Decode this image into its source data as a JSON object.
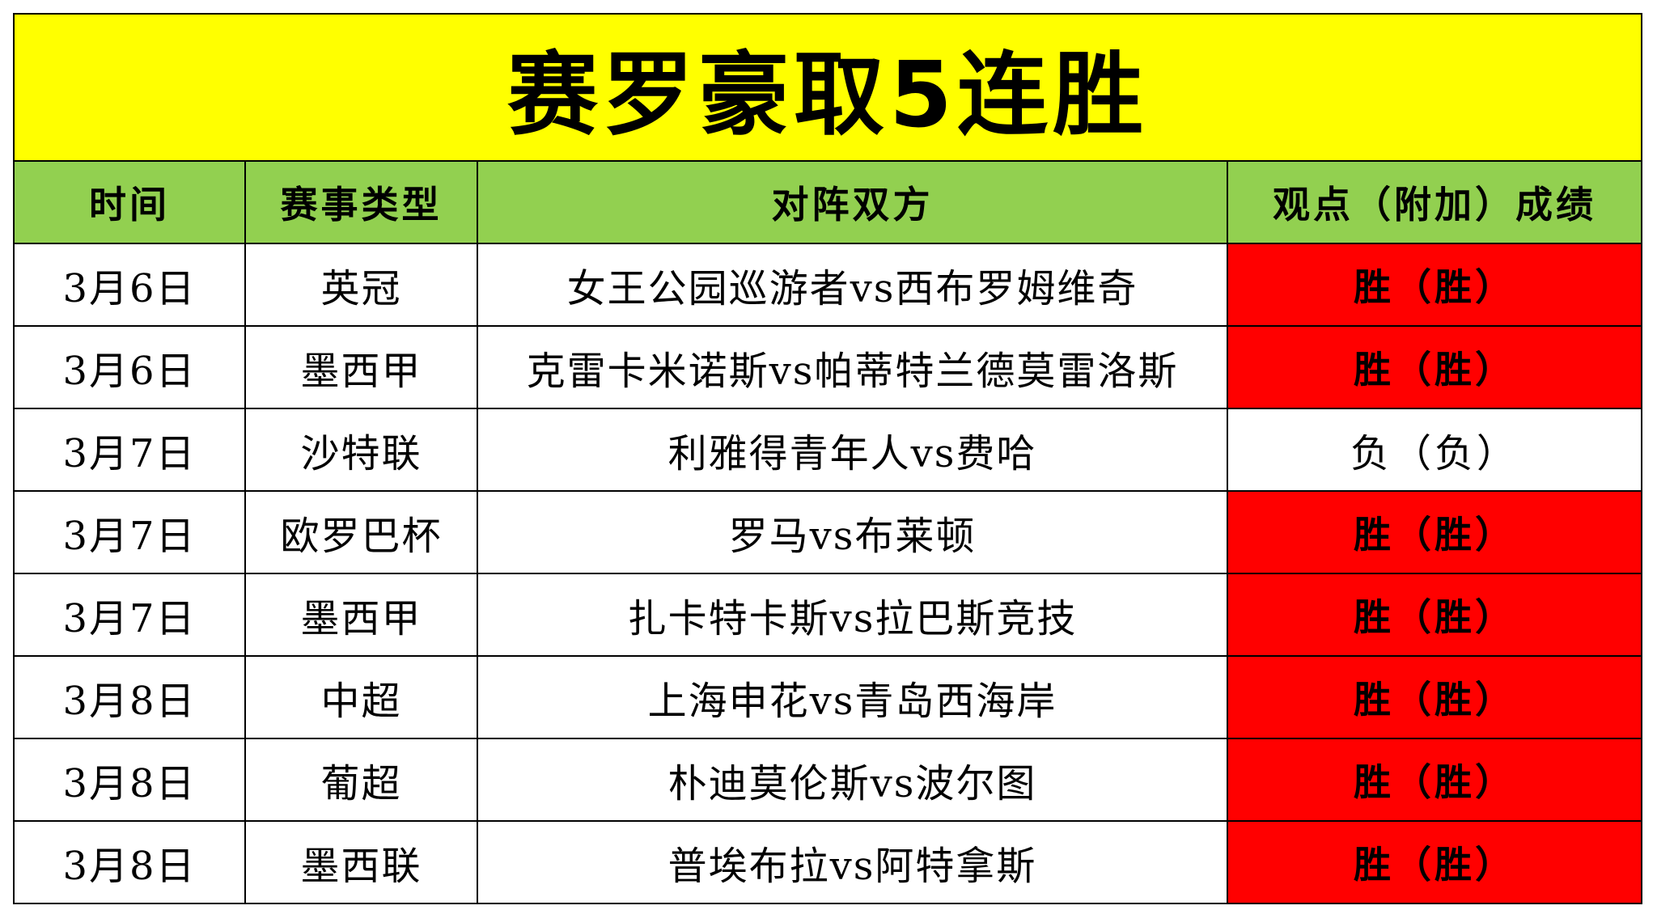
{
  "title": "赛罗豪取5连胜",
  "headers": {
    "date": "时间",
    "type": "赛事类型",
    "match": "对阵双方",
    "result": "观点（附加）成绩"
  },
  "colors": {
    "title_bg": "#ffff00",
    "header_bg": "#92d050",
    "win_bg": "#ff0000",
    "loss_bg": "#ffffff"
  },
  "rows": [
    {
      "date": "3月6日",
      "type": "英冠",
      "match": "女王公园巡游者vs西布罗姆维奇",
      "result": "胜（胜）",
      "status": "win"
    },
    {
      "date": "3月6日",
      "type": "墨西甲",
      "match": "克雷卡米诺斯vs帕蒂特兰德莫雷洛斯",
      "result": "胜（胜）",
      "status": "win"
    },
    {
      "date": "3月7日",
      "type": "沙特联",
      "match": "利雅得青年人vs费哈",
      "result": "负（负）",
      "status": "loss"
    },
    {
      "date": "3月7日",
      "type": "欧罗巴杯",
      "match": "罗马vs布莱顿",
      "result": "胜（胜）",
      "status": "win"
    },
    {
      "date": "3月7日",
      "type": "墨西甲",
      "match": "扎卡特卡斯vs拉巴斯竞技",
      "result": "胜（胜）",
      "status": "win"
    },
    {
      "date": "3月8日",
      "type": "中超",
      "match": "上海申花vs青岛西海岸",
      "result": "胜（胜）",
      "status": "win"
    },
    {
      "date": "3月8日",
      "type": "葡超",
      "match": "朴迪莫伦斯vs波尔图",
      "result": "胜（胜）",
      "status": "win"
    },
    {
      "date": "3月8日",
      "type": "墨西联",
      "match": "普埃布拉vs阿特拿斯",
      "result": "胜（胜）",
      "status": "win"
    }
  ]
}
